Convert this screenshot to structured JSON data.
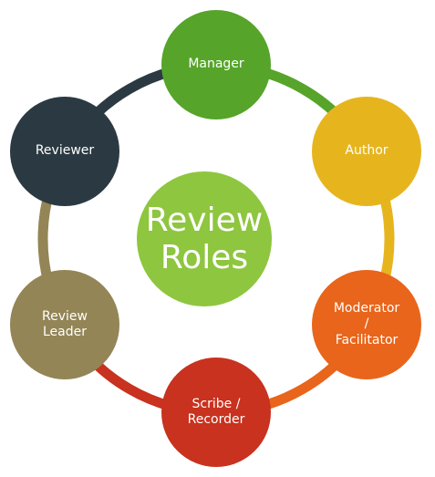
{
  "center": {
    "label": "Review\nRoles",
    "color": "#8ec63f"
  },
  "roles": [
    {
      "id": "manager",
      "label": "Manager",
      "color": "#56a42a"
    },
    {
      "id": "author",
      "label": "Author",
      "color": "#e6b51e"
    },
    {
      "id": "moderator",
      "label": "Moderator\n/\nFacilitator",
      "color": "#e8651b"
    },
    {
      "id": "scribe",
      "label": "Scribe /\nRecorder",
      "color": "#c8321e"
    },
    {
      "id": "leader",
      "label": "Review\nLeader",
      "color": "#938556"
    },
    {
      "id": "reviewer",
      "label": "Reviewer",
      "color": "#2b3a42"
    }
  ],
  "ring_colors": [
    "#56a42a",
    "#e6b51e",
    "#e8651b",
    "#c8321e",
    "#938556",
    "#2b3a42"
  ]
}
